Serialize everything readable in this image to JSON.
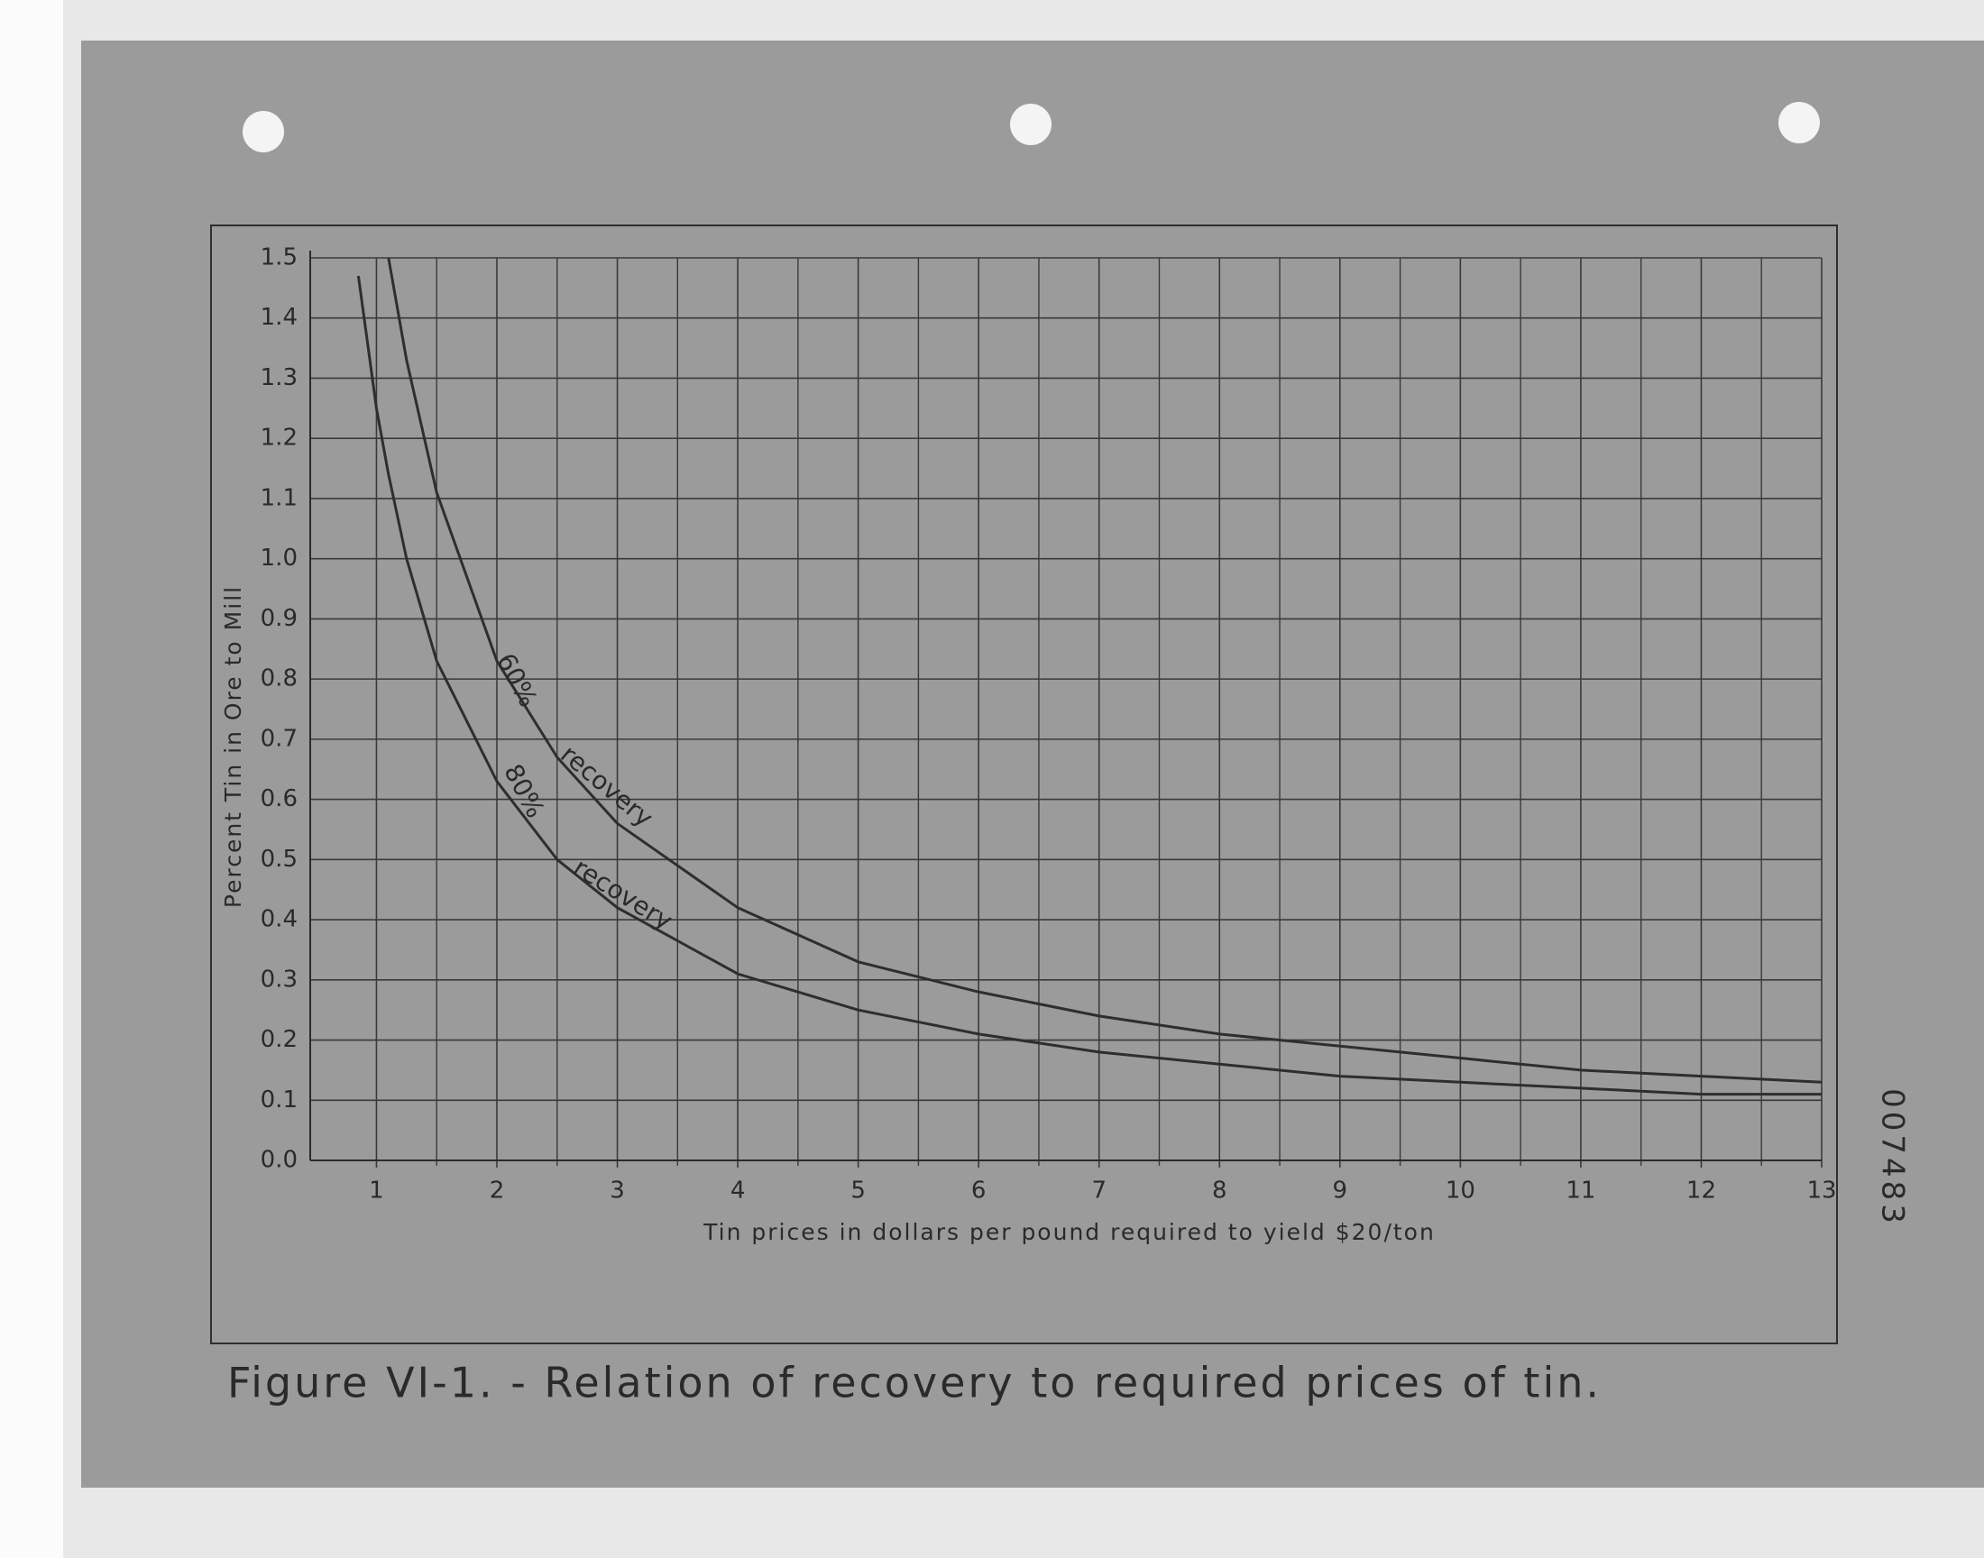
{
  "chart_data": {
    "type": "line",
    "title": "Figure VI-1. - Relation of recovery to required prices of tin.",
    "x_label": "Tin prices in dollars per pound required to yield $20/ton",
    "y_label": "Percent Tin in Ore to Mill",
    "x": [
      0.85,
      1,
      1.1,
      1.25,
      1.5,
      2,
      2.5,
      3,
      4,
      5,
      6,
      7,
      8,
      9,
      10,
      11,
      12,
      13
    ],
    "series": [
      {
        "name": "60%",
        "color": "#2e2e2e",
        "values": [
          null,
          null,
          1.5,
          1.33,
          1.11,
          0.83,
          0.67,
          0.56,
          0.42,
          0.33,
          0.28,
          0.24,
          0.21,
          0.19,
          0.17,
          0.15,
          0.14,
          0.13
        ]
      },
      {
        "name": "80%",
        "color": "#2e2e2e",
        "values": [
          1.47,
          1.25,
          1.14,
          1.0,
          0.83,
          0.63,
          0.5,
          0.42,
          0.31,
          0.25,
          0.21,
          0.18,
          0.16,
          0.14,
          0.13,
          0.12,
          0.11,
          0.11
        ]
      }
    ],
    "annotations": [
      "recovery",
      "recovery"
    ],
    "stamp": "007483",
    "xlim": [
      0.45,
      13
    ],
    "xticks": [
      1,
      2,
      3,
      4,
      5,
      6,
      7,
      8,
      9,
      10,
      11,
      12,
      13
    ],
    "ylim": [
      0,
      1.5
    ],
    "yticks": [
      {
        "value": 0,
        "label": "0.0"
      },
      0.1,
      0.2,
      0.3,
      0.4,
      0.5,
      0.6,
      0.7,
      0.8,
      0.9,
      {
        "value": 1,
        "label": "1.0"
      },
      1.1,
      1.2,
      1.3,
      1.4,
      1.5
    ],
    "grid": true
  }
}
